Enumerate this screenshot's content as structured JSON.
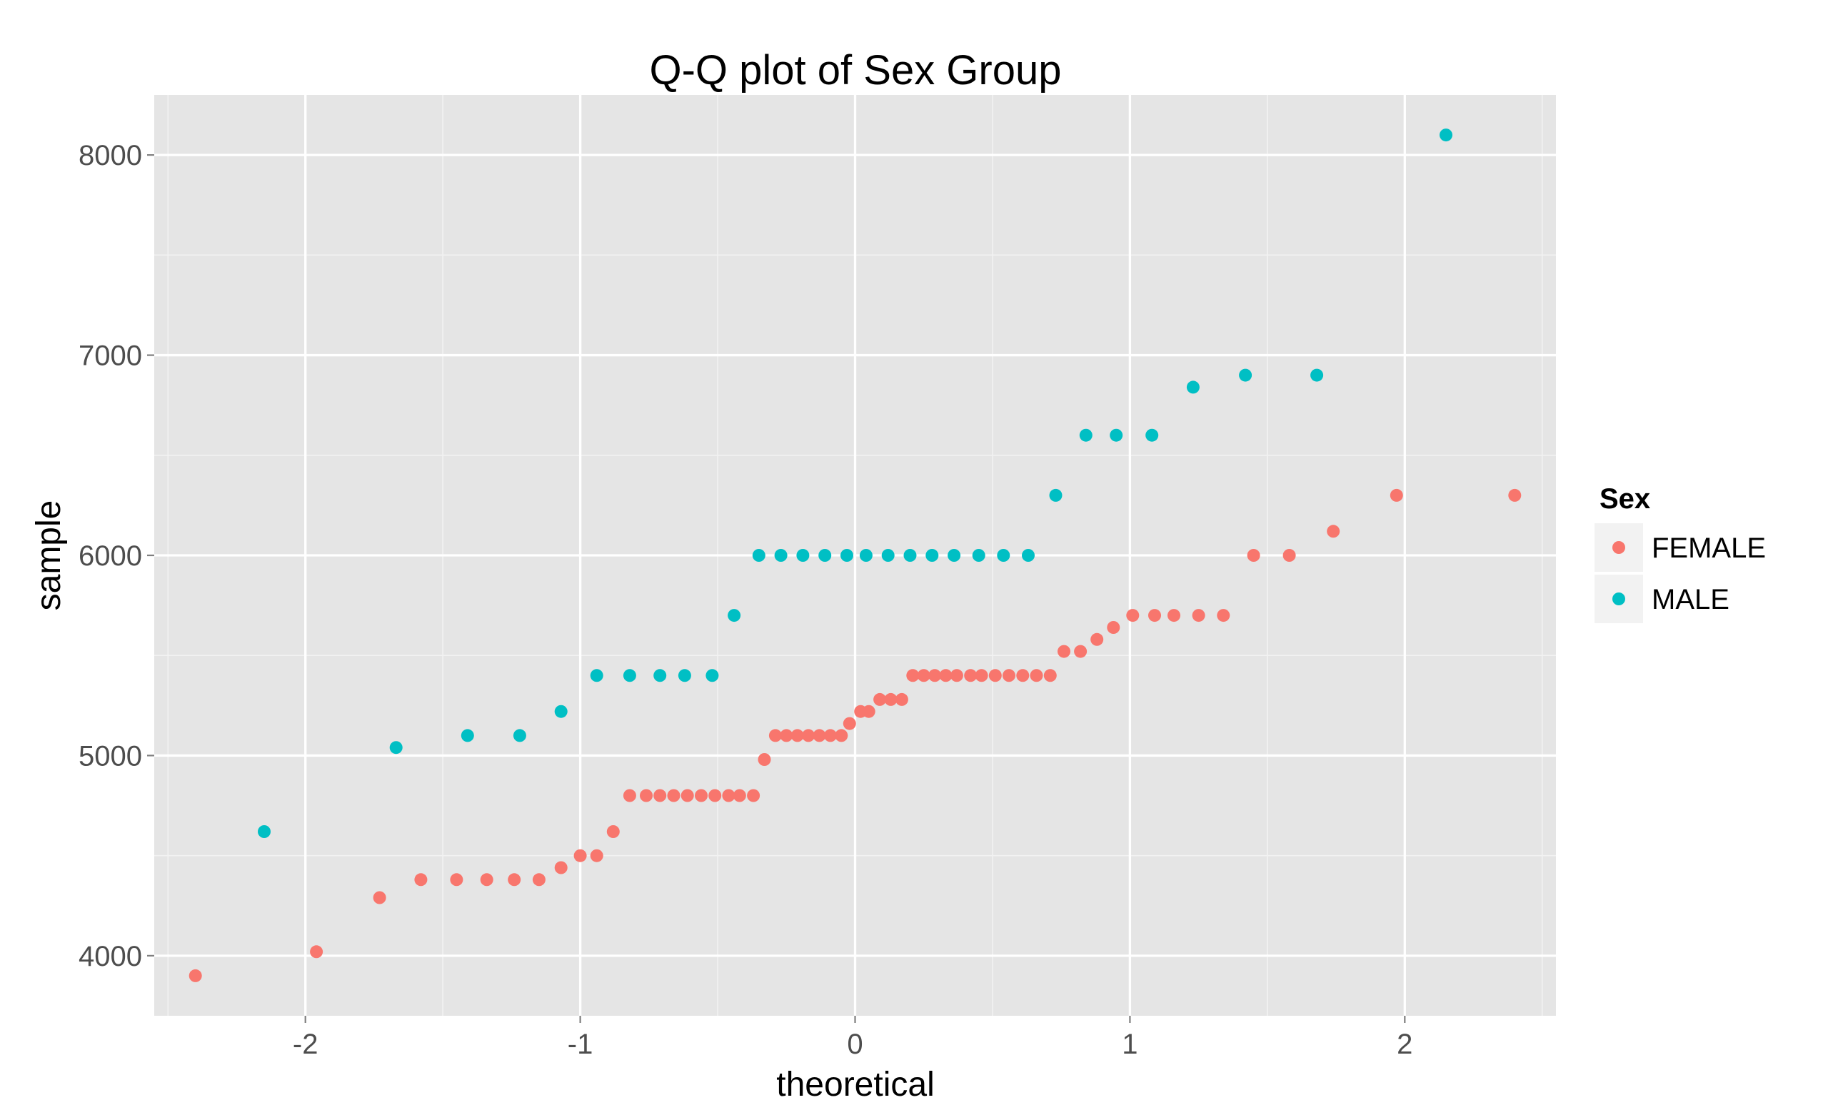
{
  "chart_data": {
    "type": "scatter",
    "title": "Q-Q plot of Sex Group",
    "xlabel": "theoretical",
    "ylabel": "sample",
    "xlim": [
      -2.55,
      2.55
    ],
    "ylim": [
      3700,
      8300
    ],
    "x_ticks": [
      -2,
      -1,
      0,
      1,
      2
    ],
    "x_tick_labels": [
      "-2",
      "-1",
      "0",
      "1",
      "2"
    ],
    "y_ticks": [
      4000,
      5000,
      6000,
      7000,
      8000
    ],
    "y_tick_labels": [
      "4000",
      "5000",
      "6000",
      "7000",
      "8000"
    ],
    "grid": true,
    "legend": {
      "title": "Sex",
      "placement": "right"
    },
    "series": [
      {
        "name": "FEMALE",
        "color": "#F8766D",
        "points": [
          [
            -2.4,
            3900
          ],
          [
            -1.96,
            4020
          ],
          [
            -1.73,
            4290
          ],
          [
            -1.58,
            4380
          ],
          [
            -1.45,
            4380
          ],
          [
            -1.34,
            4380
          ],
          [
            -1.24,
            4380
          ],
          [
            -1.15,
            4380
          ],
          [
            -1.07,
            4440
          ],
          [
            -1.0,
            4500
          ],
          [
            -0.94,
            4500
          ],
          [
            -0.88,
            4620
          ],
          [
            -0.82,
            4800
          ],
          [
            -0.76,
            4800
          ],
          [
            -0.71,
            4800
          ],
          [
            -0.66,
            4800
          ],
          [
            -0.61,
            4800
          ],
          [
            -0.56,
            4800
          ],
          [
            -0.51,
            4800
          ],
          [
            -0.46,
            4800
          ],
          [
            -0.42,
            4800
          ],
          [
            -0.37,
            4800
          ],
          [
            -0.33,
            4980
          ],
          [
            -0.29,
            5100
          ],
          [
            -0.25,
            5100
          ],
          [
            -0.21,
            5100
          ],
          [
            -0.17,
            5100
          ],
          [
            -0.13,
            5100
          ],
          [
            -0.09,
            5100
          ],
          [
            -0.05,
            5100
          ],
          [
            -0.02,
            5160
          ],
          [
            0.02,
            5220
          ],
          [
            0.05,
            5220
          ],
          [
            0.09,
            5280
          ],
          [
            0.13,
            5280
          ],
          [
            0.17,
            5280
          ],
          [
            0.21,
            5400
          ],
          [
            0.25,
            5400
          ],
          [
            0.29,
            5400
          ],
          [
            0.33,
            5400
          ],
          [
            0.37,
            5400
          ],
          [
            0.42,
            5400
          ],
          [
            0.46,
            5400
          ],
          [
            0.51,
            5400
          ],
          [
            0.56,
            5400
          ],
          [
            0.61,
            5400
          ],
          [
            0.66,
            5400
          ],
          [
            0.71,
            5400
          ],
          [
            0.76,
            5520
          ],
          [
            0.82,
            5520
          ],
          [
            0.88,
            5580
          ],
          [
            0.94,
            5640
          ],
          [
            1.01,
            5700
          ],
          [
            1.09,
            5700
          ],
          [
            1.16,
            5700
          ],
          [
            1.25,
            5700
          ],
          [
            1.34,
            5700
          ],
          [
            1.45,
            6000
          ],
          [
            1.58,
            6000
          ],
          [
            1.74,
            6120
          ],
          [
            1.97,
            6300
          ],
          [
            2.4,
            6300
          ]
        ]
      },
      {
        "name": "MALE",
        "color": "#00BFC4",
        "points": [
          [
            -2.15,
            4620
          ],
          [
            -1.67,
            5040
          ],
          [
            -1.41,
            5100
          ],
          [
            -1.22,
            5100
          ],
          [
            -1.07,
            5220
          ],
          [
            -0.94,
            5400
          ],
          [
            -0.82,
            5400
          ],
          [
            -0.71,
            5400
          ],
          [
            -0.62,
            5400
          ],
          [
            -0.52,
            5400
          ],
          [
            -0.44,
            5700
          ],
          [
            -0.35,
            6000
          ],
          [
            -0.27,
            6000
          ],
          [
            -0.19,
            6000
          ],
          [
            -0.11,
            6000
          ],
          [
            -0.03,
            6000
          ],
          [
            0.04,
            6000
          ],
          [
            0.12,
            6000
          ],
          [
            0.2,
            6000
          ],
          [
            0.28,
            6000
          ],
          [
            0.36,
            6000
          ],
          [
            0.45,
            6000
          ],
          [
            0.54,
            6000
          ],
          [
            0.63,
            6000
          ],
          [
            0.73,
            6300
          ],
          [
            0.84,
            6600
          ],
          [
            0.95,
            6600
          ],
          [
            1.08,
            6600
          ],
          [
            1.23,
            6840
          ],
          [
            1.42,
            6900
          ],
          [
            1.68,
            6900
          ],
          [
            2.15,
            8100
          ]
        ]
      }
    ]
  }
}
